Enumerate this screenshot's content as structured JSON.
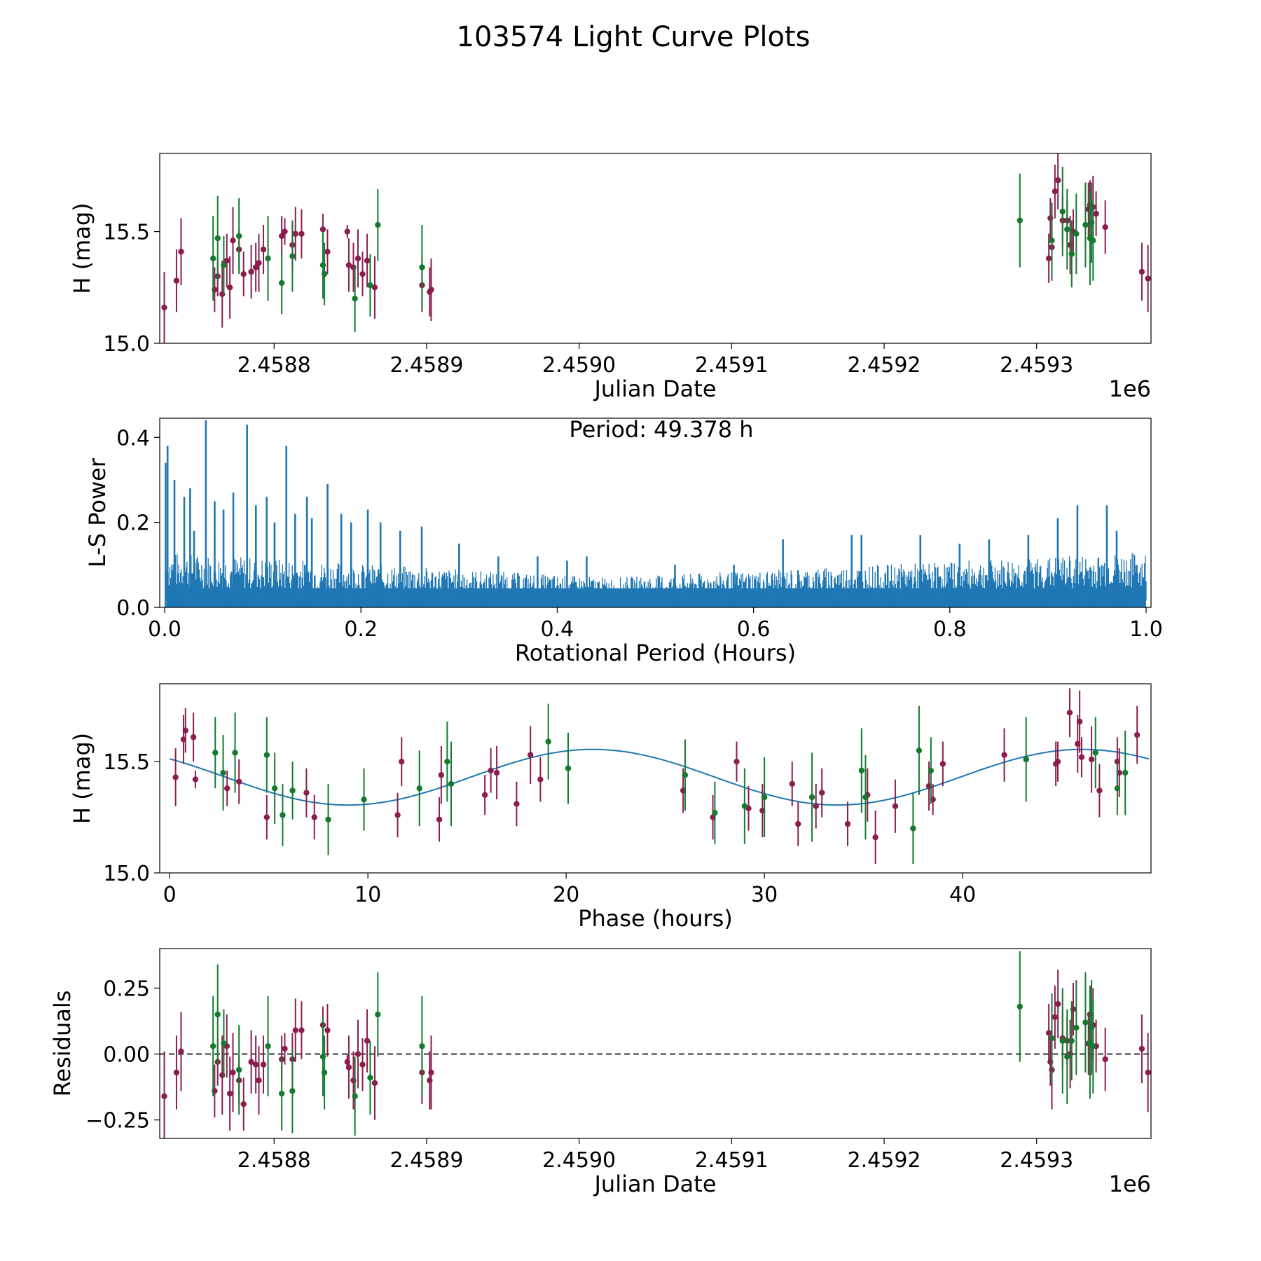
{
  "figure_title": "103574 Light Curve Plots",
  "colors": {
    "magenta": "#8b1e4f",
    "green": "#157a30",
    "blue": "#1f77b4"
  },
  "chart_data": [
    {
      "id": "lc",
      "type": "scatter",
      "title": "",
      "xlabel": "Julian Date",
      "ylabel": "H (mag)",
      "offset_label": "1e6",
      "xlim": [
        2.458725,
        2.459375
      ],
      "ylim": [
        15.0,
        15.85
      ],
      "xticks": [
        2.4588,
        2.4589,
        2.459,
        2.4591,
        2.4592,
        2.4593
      ],
      "xtick_labels": [
        "2.4588",
        "2.4589",
        "2.4590",
        "2.4591",
        "2.4592",
        "2.4593"
      ],
      "yticks": [
        15.0,
        15.5
      ],
      "ytick_labels": [
        "15.0",
        "15.5"
      ],
      "series": [
        {
          "name": "magenta",
          "color": "#8b1e4f",
          "x": [
            2.458728,
            2.458736,
            2.458739,
            2.458761,
            2.458763,
            2.458766,
            2.458769,
            2.458771,
            2.458773,
            2.458777,
            2.45878,
            2.458785,
            2.458788,
            2.45879,
            2.458793,
            2.458805,
            2.458807,
            2.458812,
            2.458814,
            2.458818,
            2.458832,
            2.458835,
            2.458848,
            2.458849,
            2.458852,
            2.458855,
            2.458858,
            2.458861,
            2.458866,
            2.458897,
            2.458902,
            2.458903,
            2.459308,
            2.459309,
            2.45931,
            2.459312,
            2.459314,
            2.459317,
            2.45932,
            2.459322,
            2.459324,
            2.459334,
            2.459335,
            2.459337,
            2.459339,
            2.459345,
            2.459369,
            2.459373
          ],
          "y": [
            15.16,
            15.28,
            15.41,
            15.24,
            15.3,
            15.22,
            15.37,
            15.25,
            15.46,
            15.42,
            15.31,
            15.32,
            15.34,
            15.36,
            15.42,
            15.48,
            15.5,
            15.44,
            15.49,
            15.49,
            15.51,
            15.41,
            15.5,
            15.35,
            15.34,
            15.38,
            15.31,
            15.37,
            15.25,
            15.26,
            15.23,
            15.24,
            15.38,
            15.56,
            15.43,
            15.68,
            15.73,
            15.55,
            15.55,
            15.44,
            15.5,
            15.6,
            15.62,
            15.61,
            15.58,
            15.52,
            15.32,
            15.29
          ],
          "err": [
            0.16,
            0.14,
            0.15,
            0.1,
            0.09,
            0.15,
            0.12,
            0.14,
            0.15,
            0.09,
            0.1,
            0.12,
            0.11,
            0.13,
            0.11,
            0.09,
            0.06,
            0.1,
            0.12,
            0.11,
            0.07,
            0.1,
            0.03,
            0.12,
            0.11,
            0.13,
            0.1,
            0.12,
            0.14,
            0.12,
            0.11,
            0.14,
            0.11,
            0.09,
            0.15,
            0.12,
            0.13,
            0.11,
            0.09,
            0.13,
            0.1,
            0.12,
            0.11,
            0.14,
            0.1,
            0.12,
            0.13,
            0.15
          ]
        },
        {
          "name": "green",
          "color": "#157a30",
          "x": [
            2.45876,
            2.458763,
            2.458767,
            2.458777,
            2.458796,
            2.458805,
            2.458812,
            2.458832,
            2.458833,
            2.458853,
            2.458863,
            2.458868,
            2.458897,
            2.459289,
            2.45931,
            2.459317,
            2.45932,
            2.459323,
            2.459326,
            2.459332,
            2.459335,
            2.459336,
            2.459337
          ],
          "y": [
            15.38,
            15.47,
            15.35,
            15.48,
            15.38,
            15.27,
            15.39,
            15.35,
            15.31,
            15.2,
            15.26,
            15.53,
            15.34,
            15.55,
            15.46,
            15.59,
            15.51,
            15.4,
            15.49,
            15.53,
            15.47,
            15.54,
            15.46
          ],
          "err": [
            0.19,
            0.19,
            0.13,
            0.17,
            0.19,
            0.14,
            0.16,
            0.15,
            0.14,
            0.15,
            0.14,
            0.16,
            0.19,
            0.21,
            0.17,
            0.2,
            0.18,
            0.15,
            0.18,
            0.19,
            0.21,
            0.18,
            0.18
          ]
        }
      ]
    },
    {
      "id": "ls",
      "type": "line",
      "title": "",
      "xlabel": "Rotational Period (Hours)",
      "ylabel": "L-S Power",
      "annotation": "Period: 49.378 h",
      "xlim": [
        -0.005,
        1.005
      ],
      "ylim": [
        0.0,
        0.445
      ],
      "xticks": [
        0.0,
        0.2,
        0.4,
        0.6,
        0.8,
        1.0
      ],
      "xtick_labels": [
        "0.0",
        "0.2",
        "0.4",
        "0.6",
        "0.8",
        "1.0"
      ],
      "yticks": [
        0.0,
        0.2,
        0.4
      ],
      "ytick_labels": [
        "0.0",
        "0.2",
        "0.4"
      ],
      "series": [
        {
          "name": "power",
          "color": "#1f77b4",
          "peaks_x": [
            0.001,
            0.003,
            0.01,
            0.02,
            0.026,
            0.03,
            0.042,
            0.051,
            0.06,
            0.07,
            0.084,
            0.093,
            0.104,
            0.112,
            0.124,
            0.133,
            0.145,
            0.15,
            0.166,
            0.18,
            0.19,
            0.207,
            0.22,
            0.24,
            0.262,
            0.3,
            0.34,
            0.38,
            0.41,
            0.43,
            0.52,
            0.58,
            0.63,
            0.7,
            0.71,
            0.77,
            0.81,
            0.84,
            0.88,
            0.91,
            0.93,
            0.96,
            0.97,
            0.99
          ],
          "peaks_y": [
            0.34,
            0.38,
            0.3,
            0.26,
            0.28,
            0.18,
            0.44,
            0.25,
            0.23,
            0.27,
            0.43,
            0.24,
            0.26,
            0.2,
            0.38,
            0.22,
            0.26,
            0.21,
            0.29,
            0.22,
            0.2,
            0.23,
            0.2,
            0.18,
            0.19,
            0.15,
            0.12,
            0.12,
            0.11,
            0.12,
            0.1,
            0.1,
            0.16,
            0.17,
            0.17,
            0.17,
            0.15,
            0.16,
            0.17,
            0.21,
            0.24,
            0.24,
            0.18,
            0.1
          ],
          "baseline_start": 0.13,
          "baseline_mid": 0.07,
          "baseline_end": 0.13
        }
      ]
    },
    {
      "id": "phase",
      "type": "scatter",
      "title": "",
      "xlabel": "Phase (hours)",
      "ylabel": "H (mag)",
      "xlim": [
        -0.5,
        49.5
      ],
      "ylim": [
        15.0,
        15.85
      ],
      "xticks": [
        0,
        10,
        20,
        30,
        40
      ],
      "xtick_labels": [
        "0",
        "10",
        "20",
        "30",
        "40"
      ],
      "yticks": [
        15.0,
        15.5
      ],
      "ytick_labels": [
        "15.0",
        "15.5"
      ],
      "model": {
        "period": 49.378,
        "mean": 15.43,
        "amp": 0.125,
        "min_phase": 9.0,
        "color": "#1f77b4",
        "x_start": 0,
        "x_end": 49.4
      },
      "series": [
        {
          "name": "magenta",
          "color": "#8b1e4f",
          "x": [
            0.3,
            0.7,
            0.8,
            1.2,
            1.3,
            2.9,
            3.5,
            4.9,
            6.9,
            7.3,
            11.5,
            11.7,
            13.6,
            13.7,
            15.9,
            16.2,
            16.5,
            17.5,
            18.2,
            18.7,
            25.9,
            27.4,
            28.6,
            29.2,
            29.9,
            31.4,
            31.7,
            32.6,
            32.9,
            34.2,
            35.2,
            35.6,
            36.6,
            38.3,
            38.5,
            39.0,
            42.1,
            44.7,
            44.8,
            45.4,
            45.8,
            45.9,
            46.0,
            46.5,
            46.9,
            47.8,
            47.9,
            48.8
          ],
          "y": [
            15.43,
            15.6,
            15.64,
            15.61,
            15.42,
            15.38,
            15.41,
            15.25,
            15.36,
            15.25,
            15.26,
            15.5,
            15.24,
            15.44,
            15.35,
            15.46,
            15.45,
            15.31,
            15.53,
            15.42,
            15.37,
            15.25,
            15.5,
            15.29,
            15.28,
            15.4,
            15.22,
            15.3,
            15.36,
            15.22,
            15.35,
            15.16,
            15.3,
            15.39,
            15.33,
            15.49,
            15.53,
            15.49,
            15.5,
            15.72,
            15.58,
            15.68,
            15.52,
            15.51,
            15.37,
            15.5,
            15.45,
            15.62
          ],
          "err": [
            0.13,
            0.11,
            0.1,
            0.11,
            0.04,
            0.08,
            0.1,
            0.1,
            0.11,
            0.1,
            0.1,
            0.11,
            0.1,
            0.13,
            0.09,
            0.1,
            0.12,
            0.1,
            0.13,
            0.1,
            0.1,
            0.1,
            0.09,
            0.1,
            0.12,
            0.1,
            0.1,
            0.1,
            0.11,
            0.1,
            0.12,
            0.12,
            0.12,
            0.11,
            0.07,
            0.1,
            0.12,
            0.1,
            0.09,
            0.11,
            0.13,
            0.14,
            0.09,
            0.15,
            0.12,
            0.11,
            0.11,
            0.13
          ]
        },
        {
          "name": "green",
          "color": "#157a30",
          "x": [
            2.3,
            2.7,
            3.3,
            4.9,
            5.3,
            5.7,
            6.2,
            8.0,
            9.8,
            12.6,
            14.0,
            14.2,
            19.1,
            20.1,
            26.0,
            27.5,
            29.0,
            30.0,
            32.4,
            34.9,
            35.1,
            37.5,
            37.8,
            38.4,
            43.2,
            46.7,
            47.8,
            48.2
          ],
          "y": [
            15.54,
            15.45,
            15.54,
            15.53,
            15.38,
            15.26,
            15.37,
            15.24,
            15.33,
            15.38,
            15.5,
            15.4,
            15.59,
            15.47,
            15.44,
            15.27,
            15.3,
            15.34,
            15.34,
            15.46,
            15.34,
            15.2,
            15.55,
            15.46,
            15.51,
            15.54,
            15.38,
            15.45
          ],
          "err": [
            0.16,
            0.17,
            0.18,
            0.17,
            0.16,
            0.14,
            0.13,
            0.16,
            0.14,
            0.17,
            0.18,
            0.19,
            0.17,
            0.16,
            0.16,
            0.14,
            0.17,
            0.18,
            0.2,
            0.19,
            0.19,
            0.16,
            0.2,
            0.15,
            0.19,
            0.16,
            0.12,
            0.19
          ]
        }
      ]
    },
    {
      "id": "res",
      "type": "scatter",
      "title": "",
      "xlabel": "Julian Date",
      "ylabel": "Residuals",
      "offset_label": "1e6",
      "xlim": [
        2.458725,
        2.459375
      ],
      "ylim": [
        -0.32,
        0.4
      ],
      "xticks": [
        2.4588,
        2.4589,
        2.459,
        2.4591,
        2.4592,
        2.4593
      ],
      "xtick_labels": [
        "2.4588",
        "2.4589",
        "2.4590",
        "2.4591",
        "2.4592",
        "2.4593"
      ],
      "yticks": [
        -0.25,
        0.0,
        0.25
      ],
      "ytick_labels": [
        "−0.25",
        "0.00",
        "0.25"
      ],
      "zero_line": true,
      "series": [
        {
          "name": "magenta",
          "color": "#8b1e4f",
          "x": [
            2.458728,
            2.458736,
            2.458739,
            2.458761,
            2.458763,
            2.458766,
            2.458769,
            2.458771,
            2.458773,
            2.458777,
            2.45878,
            2.458785,
            2.458788,
            2.45879,
            2.458793,
            2.458805,
            2.458807,
            2.458812,
            2.458814,
            2.458818,
            2.458832,
            2.458835,
            2.458848,
            2.458849,
            2.458852,
            2.458855,
            2.458858,
            2.458861,
            2.458866,
            2.458897,
            2.458902,
            2.458903,
            2.459308,
            2.459309,
            2.45931,
            2.459312,
            2.459314,
            2.459317,
            2.45932,
            2.459322,
            2.459324,
            2.459334,
            2.459335,
            2.459337,
            2.459339,
            2.459345,
            2.459369,
            2.459373
          ],
          "y": [
            -0.16,
            -0.07,
            0.01,
            -0.14,
            -0.03,
            -0.08,
            0.03,
            -0.15,
            -0.07,
            -0.1,
            -0.19,
            -0.03,
            -0.04,
            -0.1,
            -0.04,
            -0.02,
            0.02,
            -0.02,
            0.09,
            0.09,
            0.11,
            0.09,
            -0.03,
            -0.05,
            -0.1,
            0.0,
            -0.04,
            0.05,
            -0.11,
            -0.07,
            -0.1,
            -0.07,
            0.08,
            -0.03,
            -0.06,
            0.14,
            0.19,
            0.06,
            0.05,
            0.0,
            0.17,
            0.04,
            0.15,
            0.11,
            0.03,
            -0.02,
            0.02,
            -0.07
          ],
          "err": [
            0.17,
            0.14,
            0.15,
            0.1,
            0.09,
            0.15,
            0.12,
            0.14,
            0.15,
            0.09,
            0.1,
            0.12,
            0.11,
            0.13,
            0.11,
            0.09,
            0.06,
            0.1,
            0.12,
            0.11,
            0.07,
            0.1,
            0.03,
            0.12,
            0.11,
            0.13,
            0.1,
            0.12,
            0.14,
            0.12,
            0.11,
            0.14,
            0.11,
            0.09,
            0.15,
            0.12,
            0.13,
            0.11,
            0.09,
            0.13,
            0.1,
            0.12,
            0.11,
            0.14,
            0.1,
            0.12,
            0.13,
            0.15
          ]
        },
        {
          "name": "green",
          "color": "#157a30",
          "x": [
            2.45876,
            2.458763,
            2.458767,
            2.458777,
            2.458796,
            2.458805,
            2.458812,
            2.458832,
            2.458833,
            2.458853,
            2.458863,
            2.458868,
            2.458897,
            2.459289,
            2.45931,
            2.459317,
            2.45932,
            2.459323,
            2.459326,
            2.459332,
            2.459335,
            2.459336,
            2.459337
          ],
          "y": [
            0.03,
            0.15,
            0.04,
            -0.06,
            0.03,
            -0.15,
            -0.14,
            -0.01,
            -0.07,
            -0.16,
            -0.09,
            0.15,
            0.03,
            0.18,
            0.06,
            0.05,
            -0.01,
            0.05,
            0.1,
            0.12,
            0.04,
            0.1,
            0.03
          ],
          "err": [
            0.19,
            0.19,
            0.13,
            0.17,
            0.19,
            0.14,
            0.16,
            0.15,
            0.14,
            0.15,
            0.14,
            0.16,
            0.19,
            0.21,
            0.17,
            0.2,
            0.18,
            0.15,
            0.18,
            0.19,
            0.21,
            0.18,
            0.18
          ]
        }
      ]
    }
  ]
}
